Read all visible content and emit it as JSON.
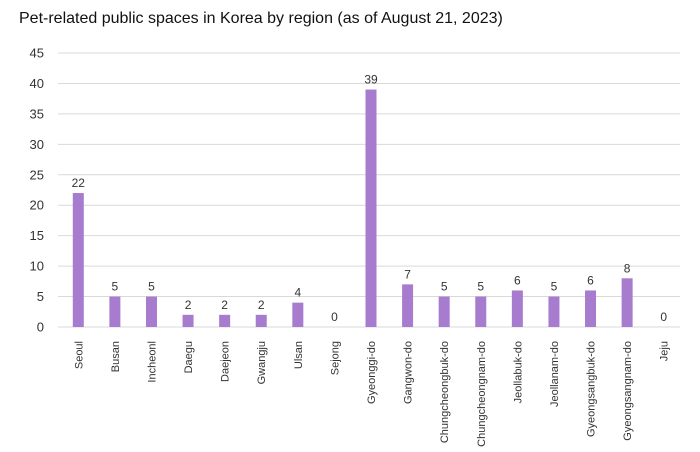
{
  "chart_data": {
    "type": "bar",
    "title": "Pet-related public spaces in Korea by region (as of August 21, 2023)",
    "xlabel": "",
    "ylabel": "",
    "categories": [
      "Seoul",
      "Busan",
      "Incheonl",
      "Daegu",
      "Daejeon",
      "Gwangju",
      "Ulsan",
      "Sejong",
      "Gyeonggi-do",
      "Gangwon-do",
      "Chungcheongbuk-do",
      "Chungcheongnam-do",
      "Jeollabuk-do",
      "Jeollanam-do",
      "Gyeongsangbuk-do",
      "Gyeongsangnam-do",
      "Jeju"
    ],
    "values": [
      22,
      5,
      5,
      2,
      2,
      2,
      4,
      0,
      39,
      7,
      5,
      5,
      6,
      5,
      6,
      8,
      0
    ],
    "ylim": [
      0,
      45
    ],
    "yticks": [
      0,
      5,
      10,
      15,
      20,
      25,
      30,
      35,
      40,
      45
    ],
    "grid": true,
    "legend": "none",
    "bar_color": "#a77bcd",
    "grid_color": "#d9d9d9"
  }
}
